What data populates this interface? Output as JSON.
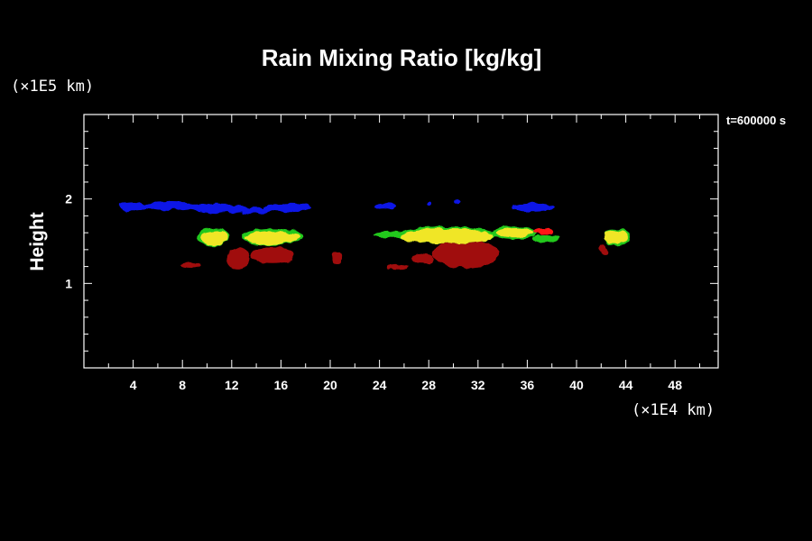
{
  "chart_data": {
    "type": "heatmap",
    "title": "Rain Mixing Ratio [kg/kg]",
    "ylabel": "Height",
    "x_unit": "(×1E4 km)",
    "y_unit": "(×1E5 km)",
    "time_label": "t=600000 s",
    "xlim": [
      0,
      51.5
    ],
    "ylim": [
      0,
      3.0
    ],
    "x_ticks": [
      4,
      8,
      12,
      16,
      20,
      24,
      28,
      32,
      36,
      40,
      44,
      48
    ],
    "x_tick_labels": [
      "4",
      "8",
      "12",
      "16",
      "20",
      "24",
      "28",
      "32",
      "36",
      "40",
      "44",
      "48"
    ],
    "y_ticks": [
      1,
      2
    ],
    "y_tick_labels": [
      "1",
      "2"
    ],
    "colors": {
      "low": "#0a14e6",
      "mid": "#22c81e",
      "high": "#f0e628",
      "peak": "#ff1414",
      "dark": "#a00e0e"
    },
    "regions": [
      {
        "level": "low",
        "x": 4.0,
        "y": 1.91,
        "rx": 1.2,
        "ry": 0.05
      },
      {
        "level": "low",
        "x": 7.0,
        "y": 1.92,
        "rx": 2.2,
        "ry": 0.05
      },
      {
        "level": "low",
        "x": 11.0,
        "y": 1.89,
        "rx": 2.4,
        "ry": 0.05
      },
      {
        "level": "low",
        "x": 14.0,
        "y": 1.86,
        "rx": 1.2,
        "ry": 0.04
      },
      {
        "level": "low",
        "x": 16.5,
        "y": 1.9,
        "rx": 2.0,
        "ry": 0.05
      },
      {
        "level": "low",
        "x": 24.5,
        "y": 1.91,
        "rx": 0.9,
        "ry": 0.035
      },
      {
        "level": "low",
        "x": 28.0,
        "y": 1.93,
        "rx": 0.25,
        "ry": 0.025
      },
      {
        "level": "low",
        "x": 30.3,
        "y": 1.96,
        "rx": 0.25,
        "ry": 0.025
      },
      {
        "level": "low",
        "x": 36.5,
        "y": 1.9,
        "rx": 1.7,
        "ry": 0.05
      },
      {
        "level": "dark",
        "x": 8.6,
        "y": 1.22,
        "rx": 0.8,
        "ry": 0.03
      },
      {
        "level": "dark",
        "x": 12.5,
        "y": 1.3,
        "rx": 0.9,
        "ry": 0.13
      },
      {
        "level": "dark",
        "x": 15.3,
        "y": 1.33,
        "rx": 1.8,
        "ry": 0.1
      },
      {
        "level": "dark",
        "x": 20.6,
        "y": 1.32,
        "rx": 0.4,
        "ry": 0.07
      },
      {
        "level": "dark",
        "x": 25.5,
        "y": 1.19,
        "rx": 0.8,
        "ry": 0.03
      },
      {
        "level": "dark",
        "x": 27.5,
        "y": 1.29,
        "rx": 0.9,
        "ry": 0.06
      },
      {
        "level": "dark",
        "x": 31.0,
        "y": 1.35,
        "rx": 2.7,
        "ry": 0.17
      },
      {
        "level": "dark",
        "x": 42.2,
        "y": 1.4,
        "rx": 0.35,
        "ry": 0.06
      },
      {
        "level": "mid",
        "x": 10.5,
        "y": 1.55,
        "rx": 1.3,
        "ry": 0.1
      },
      {
        "level": "mid",
        "x": 15.3,
        "y": 1.55,
        "rx": 2.4,
        "ry": 0.1
      },
      {
        "level": "mid",
        "x": 25.0,
        "y": 1.58,
        "rx": 1.5,
        "ry": 0.04
      },
      {
        "level": "mid",
        "x": 29.5,
        "y": 1.57,
        "rx": 4.0,
        "ry": 0.1
      },
      {
        "level": "mid",
        "x": 35.0,
        "y": 1.6,
        "rx": 1.8,
        "ry": 0.08
      },
      {
        "level": "mid",
        "x": 37.5,
        "y": 1.53,
        "rx": 1.1,
        "ry": 0.05
      },
      {
        "level": "mid",
        "x": 43.3,
        "y": 1.55,
        "rx": 1.1,
        "ry": 0.1
      },
      {
        "level": "high",
        "x": 10.6,
        "y": 1.54,
        "rx": 1.1,
        "ry": 0.08
      },
      {
        "level": "high",
        "x": 15.3,
        "y": 1.54,
        "rx": 2.2,
        "ry": 0.08
      },
      {
        "level": "high",
        "x": 29.5,
        "y": 1.56,
        "rx": 3.8,
        "ry": 0.09
      },
      {
        "level": "high",
        "x": 35.0,
        "y": 1.6,
        "rx": 1.5,
        "ry": 0.06
      },
      {
        "level": "high",
        "x": 43.2,
        "y": 1.55,
        "rx": 1.0,
        "ry": 0.08
      },
      {
        "level": "peak",
        "x": 37.3,
        "y": 1.62,
        "rx": 0.8,
        "ry": 0.035
      }
    ]
  }
}
